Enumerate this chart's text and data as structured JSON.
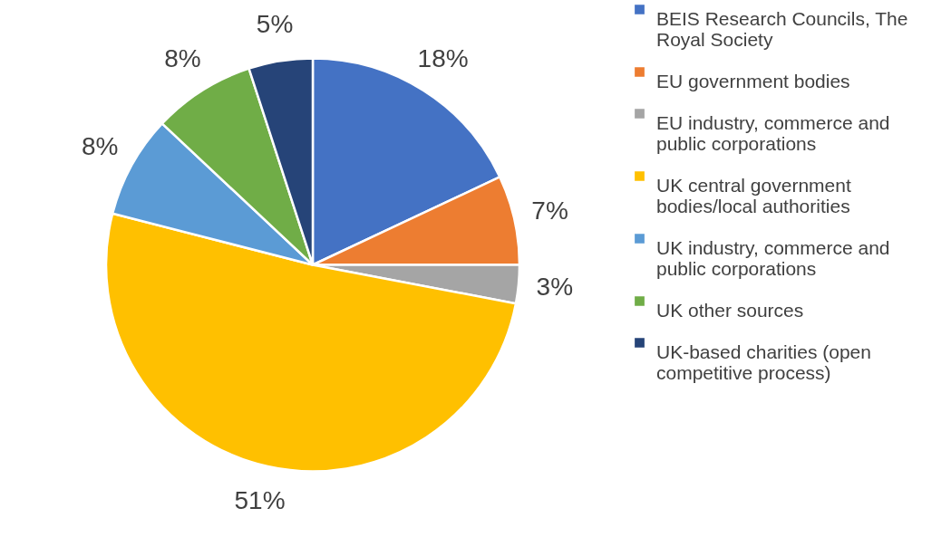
{
  "chart_data": {
    "type": "pie",
    "categories": [
      "BEIS Research Councils, The Royal Society",
      "EU government bodies",
      "EU industry, commerce and public corporations",
      "UK central government bodies/local authorities",
      "UK industry, commerce and public corporations",
      "UK other sources",
      "UK-based charities (open competitive process)"
    ],
    "values": [
      18,
      7,
      3,
      51,
      8,
      8,
      5
    ],
    "value_labels": [
      "18%",
      "7%",
      "3%",
      "51%",
      "8%",
      "8%",
      "5%"
    ],
    "colors": [
      "#4472c4",
      "#ed7d31",
      "#a5a5a5",
      "#ffc000",
      "#5b9bd5",
      "#70ad47",
      "#264478"
    ],
    "legend": "right"
  }
}
